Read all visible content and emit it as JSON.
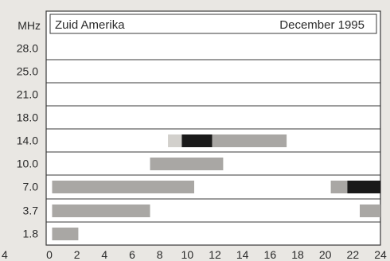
{
  "chart_data": {
    "type": "bar",
    "title": "Zuid Amerika",
    "subtitle": "December 1995",
    "ylabel": "MHz",
    "xlabel": "",
    "xlim": [
      0,
      24
    ],
    "x_ticks": [
      "0",
      "2",
      "4",
      "6",
      "8",
      "10",
      "12",
      "14",
      "16",
      "18",
      "20",
      "22",
      "24"
    ],
    "left_edge_label": "4",
    "categories": [
      "28.0",
      "25.0",
      "21.0",
      "18.0",
      "14.0",
      "10.0",
      "7.0",
      "3.7",
      "1.8"
    ],
    "grid": true,
    "levels": {
      "light": "#d2d0cc",
      "medium": "#a9a7a4",
      "dark": "#1a1a1a"
    },
    "bars": [
      {
        "band": "14.0",
        "start": 8.6,
        "end": 9.6,
        "level": "light"
      },
      {
        "band": "14.0",
        "start": 9.6,
        "end": 11.8,
        "level": "dark"
      },
      {
        "band": "14.0",
        "start": 11.8,
        "end": 17.2,
        "level": "medium"
      },
      {
        "band": "10.0",
        "start": 7.3,
        "end": 12.6,
        "level": "medium"
      },
      {
        "band": "7.0",
        "start": 0.2,
        "end": 10.5,
        "level": "medium"
      },
      {
        "band": "7.0",
        "start": 20.4,
        "end": 21.6,
        "level": "medium"
      },
      {
        "band": "7.0",
        "start": 21.6,
        "end": 24.0,
        "level": "dark"
      },
      {
        "band": "3.7",
        "start": 0.2,
        "end": 7.3,
        "level": "medium"
      },
      {
        "band": "3.7",
        "start": 22.5,
        "end": 24.0,
        "level": "medium"
      },
      {
        "band": "1.8",
        "start": 0.2,
        "end": 2.1,
        "level": "medium"
      }
    ]
  }
}
